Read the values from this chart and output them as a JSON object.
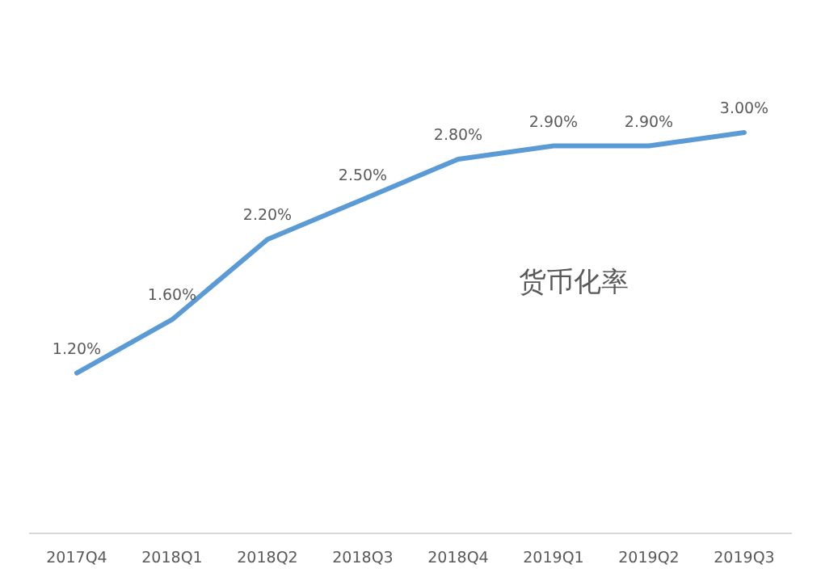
{
  "chart_data": {
    "type": "line",
    "categories": [
      "2017Q4",
      "2018Q1",
      "2018Q2",
      "2018Q3",
      "2018Q4",
      "2019Q1",
      "2019Q2",
      "2019Q3"
    ],
    "series": [
      {
        "name": "货币化率",
        "color": "#5b9bd5",
        "values": [
          1.2,
          1.6,
          2.2,
          2.5,
          2.8,
          2.9,
          2.9,
          3.0
        ],
        "value_labels": [
          "1.20%",
          "1.60%",
          "2.20%",
          "2.50%",
          "2.80%",
          "2.90%",
          "2.90%",
          "3.00%"
        ]
      }
    ],
    "tick_labels": "x",
    "legend": "right",
    "marker": "none",
    "line_style": "solid"
  }
}
